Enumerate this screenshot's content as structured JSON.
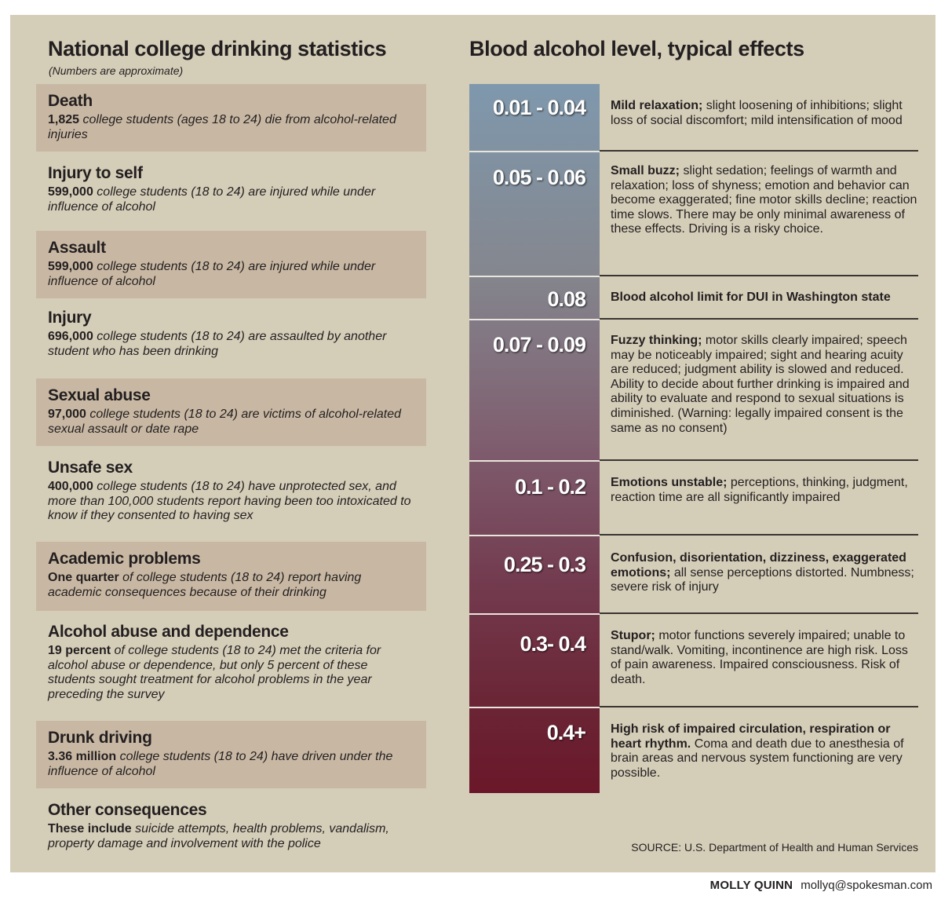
{
  "left": {
    "title": "National college drinking statistics",
    "subtitle": "(Numbers are approximate)",
    "items": [
      {
        "heading": "Death",
        "lead": "1,825",
        "text": " college students (ages 18 to 24) die from alcohol-related injuries"
      },
      {
        "heading": "Injury to self",
        "lead": "599,000",
        "text": " college students (18 to 24) are injured while under influence of alcohol"
      },
      {
        "heading": "Assault",
        "lead": "599,000",
        "text": " college students (18 to 24) are injured while under influence of alcohol"
      },
      {
        "heading": "Injury",
        "lead": "696,000",
        "text": " college students (18 to 24) are assaulted by another student who has been drinking"
      },
      {
        "heading": "Sexual abuse",
        "lead": "97,000",
        "text": " college students (18 to 24) are victims of alcohol-related sexual assault or date rape"
      },
      {
        "heading": "Unsafe sex",
        "lead": "400,000",
        "text": " college students (18 to 24) have unprotected sex, and more than 100,000 students report having been too intoxicated to know if they consented to having sex"
      },
      {
        "heading": "Academic problems",
        "lead": "One quarter",
        "text": " of college students (18 to 24) report having academic consequences because of their drinking"
      },
      {
        "heading": "Alcohol abuse and dependence",
        "lead": "19 percent",
        "text": " of college students (18 to 24) met the criteria for alcohol abuse or dependence, but only 5 percent of these students sought treatment for alcohol problems in the year preceding the survey"
      },
      {
        "heading": "Drunk driving",
        "lead": "3.36 million",
        "text": " college students (18 to 24) have driven under the influence of alcohol"
      },
      {
        "heading": "Other consequences",
        "lead": "These include",
        "text": " suicide attempts, health problems, vandalism, property damage and involvement with the police"
      }
    ]
  },
  "right": {
    "title": "Blood alcohol level, typical effects",
    "levels": [
      {
        "level": "0.01 - 0.04",
        "bold": "Mild relaxation;",
        "text": " slight loosening of inhibitions; slight loss of social discomfort; mild intensification of mood"
      },
      {
        "level": "0.05 - 0.06",
        "bold": "Small buzz;",
        "text": " slight sedation; feelings of warmth and relaxation; loss of shyness; emotion and behavior can become exaggerated; fine motor skills decline; reaction time slows. There may be only minimal awareness of these effects. Driving is a risky choice."
      },
      {
        "level": "0.08",
        "bold": "Blood alcohol limit for DUI in Washington state",
        "text": ""
      },
      {
        "level": "0.07 - 0.09",
        "bold": "Fuzzy thinking;",
        "text": " motor skills clearly impaired; speech may be noticeably impaired; sight and hearing acuity are reduced; judgment ability is slowed and reduced. Ability to decide about further drinking is impaired and ability to evaluate and respond to sexual situations is diminished. (Warning: legally impaired consent is the same as no consent)"
      },
      {
        "level": "0.1 - 0.2",
        "bold": "Emotions unstable;",
        "text": " perceptions, thinking, judgment, reaction time are all significantly impaired"
      },
      {
        "level": "0.25 - 0.3",
        "bold": "Confusion, disorientation, dizziness, exaggerated emotions;",
        "text": " all sense perceptions distorted. Numbness; severe risk of injury"
      },
      {
        "level": "0.3- 0.4",
        "bold": "Stupor;",
        "text": " motor functions severely impaired; unable to stand/walk. Vomiting, incontinence are high risk. Loss of pain awareness. Impaired consciousness. Risk of death."
      },
      {
        "level": "0.4+",
        "bold": "High risk of impaired circulation, respiration or heart rhythm.",
        "text": " Coma and death due to anesthesia of brain areas and nervous system functioning are very possible."
      }
    ]
  },
  "source": "SOURCE: U.S. Department of Health and Human Services",
  "credit": {
    "name": "MOLLY QUINN",
    "email": "mollyq@spokesman.com"
  }
}
